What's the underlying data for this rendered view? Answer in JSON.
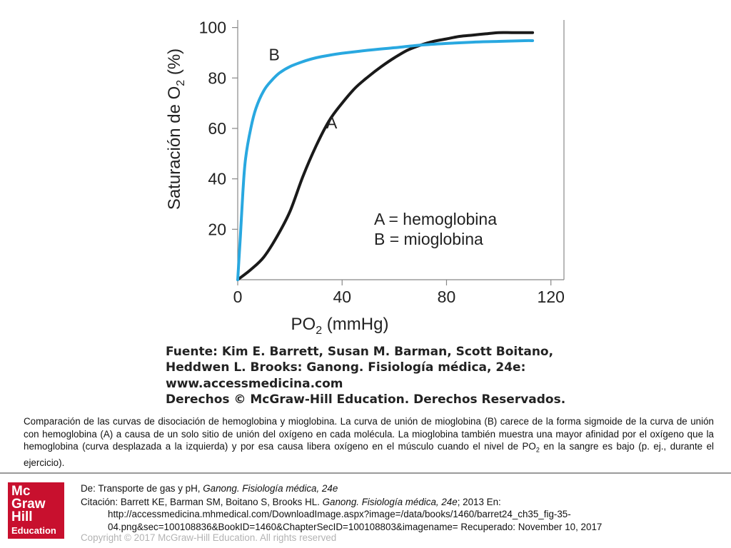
{
  "chart_data": {
    "type": "line",
    "xlabel": "PO",
    "xlabel_sub": "2",
    "xlabel_unit": " (mmHg)",
    "ylabel": "Saturación de O",
    "ylabel_sub": "2",
    "ylabel_unit": " (%)",
    "xlim": [
      0,
      125
    ],
    "ylim": [
      0,
      103
    ],
    "xticks": [
      0,
      40,
      80,
      120
    ],
    "yticks": [
      20,
      40,
      60,
      80,
      100
    ],
    "grid": false,
    "series": [
      {
        "name": "A",
        "color": "#1a1a1a",
        "x": [
          0,
          5,
          10,
          15,
          20,
          25,
          30,
          35,
          40,
          45,
          50,
          55,
          60,
          65,
          70,
          75,
          80,
          85,
          90,
          95,
          100,
          105,
          110,
          113
        ],
        "y": [
          0,
          4,
          9,
          17,
          27,
          41,
          53,
          63,
          70,
          76,
          80.5,
          84.5,
          88,
          91,
          93,
          94.5,
          95.5,
          96.5,
          97,
          97.5,
          98,
          98,
          98,
          98
        ]
      },
      {
        "name": "B",
        "color": "#29a8e0",
        "x": [
          0,
          1,
          2,
          3,
          5,
          7,
          10,
          13,
          16,
          20,
          25,
          30,
          35,
          40,
          50,
          60,
          70,
          80,
          90,
          100,
          110,
          113
        ],
        "y": [
          0,
          17,
          35,
          48,
          60,
          68,
          75,
          79,
          82,
          84.5,
          86.5,
          88,
          89,
          89.8,
          91,
          92,
          93,
          93.7,
          94.2,
          94.5,
          94.8,
          94.8
        ]
      }
    ],
    "annotations": [
      {
        "text": "B",
        "x": 14,
        "y": 87
      },
      {
        "text": "A",
        "x": 36,
        "y": 60
      }
    ],
    "legend": [
      "A = hemoglobina",
      "B = mioglobina"
    ]
  },
  "credit": [
    "Fuente: Kim E. Barrett, Susan M. Barman, Scott Boitano,",
    "Heddwen L. Brooks: Ganong. Fisiología médica, 24e:",
    "www.accessmedicina.com",
    "Derechos © McGraw-Hill Education. Derechos Reservados."
  ],
  "caption": {
    "part1": "Comparación de las curvas de disociación de hemoglobina y mioglobina. La curva de unión de mioglobina (B) carece de la forma sigmoide de la curva de unión con hemoglobina (A) a causa de un solo sitio de unión del oxígeno en cada molécula. La mioglobina también muestra una mayor afinidad por el oxígeno que la hemoglobina (curva desplazada a la izquierda) y por esa causa libera oxígeno en el músculo cuando el nivel de PO",
    "sub": "2",
    "part2": " en la sangre es bajo (p. ej., durante el ejercicio)."
  },
  "footer": {
    "source_prefix": "De: Transporte de gas y pH, ",
    "source_title": "Ganong. Fisiología médica, 24e",
    "citation_prefix": "Citación: Barrett KE, Barman SM, Boitano S, Brooks HL. ",
    "citation_title": "Ganong. Fisiología médica, 24e",
    "citation_suffix": "; 2013 En:",
    "citation_url_1": "http://accessmedicina.mhmedical.com/DownloadImage.aspx?image=/data/books/1460/barret24_ch35_fig-35-",
    "citation_url_2": "04.png&sec=100108836&BookID=1460&ChapterSecID=100108803&imagename= Recuperado: November 10, 2017",
    "copyright": "Copyright © 2017 McGraw-Hill Education. All rights reserved"
  },
  "logo": {
    "line1": "Mc",
    "line2": "Graw",
    "line3": "Hill",
    "line4": "Education"
  }
}
